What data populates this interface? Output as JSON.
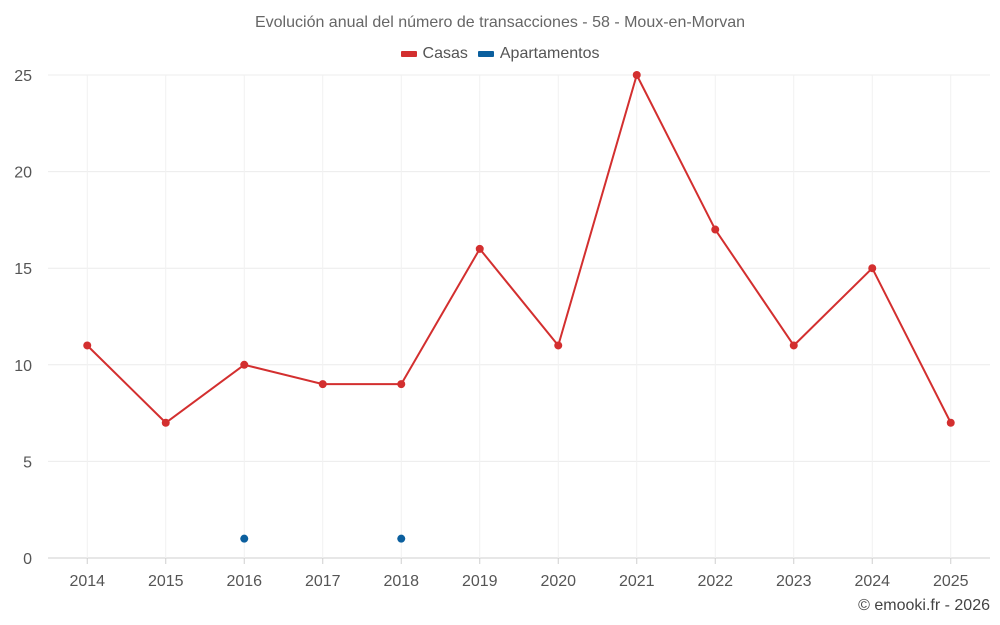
{
  "chart_data": {
    "type": "line",
    "title": "Evolución anual del número de transacciones - 58 - Moux-en-Morvan",
    "categories": [
      "2014",
      "2015",
      "2016",
      "2017",
      "2018",
      "2019",
      "2020",
      "2021",
      "2022",
      "2023",
      "2024",
      "2025"
    ],
    "ylim": [
      0,
      25
    ],
    "yticks": [
      0,
      5,
      10,
      15,
      20,
      25
    ],
    "grid": true,
    "legend_position": "top-center",
    "series": [
      {
        "name": "Casas",
        "color": "#d32f2f",
        "values": [
          11,
          7,
          10,
          9,
          9,
          16,
          11,
          25,
          17,
          11,
          15,
          7
        ]
      },
      {
        "name": "Apartamentos",
        "color": "#0b5f9e",
        "values": [
          null,
          null,
          1,
          null,
          1,
          null,
          null,
          null,
          null,
          null,
          null,
          null
        ]
      }
    ]
  },
  "legend": {
    "casas": "Casas",
    "apartamentos": "Apartamentos"
  },
  "footer": "© emooki.fr - 2026"
}
